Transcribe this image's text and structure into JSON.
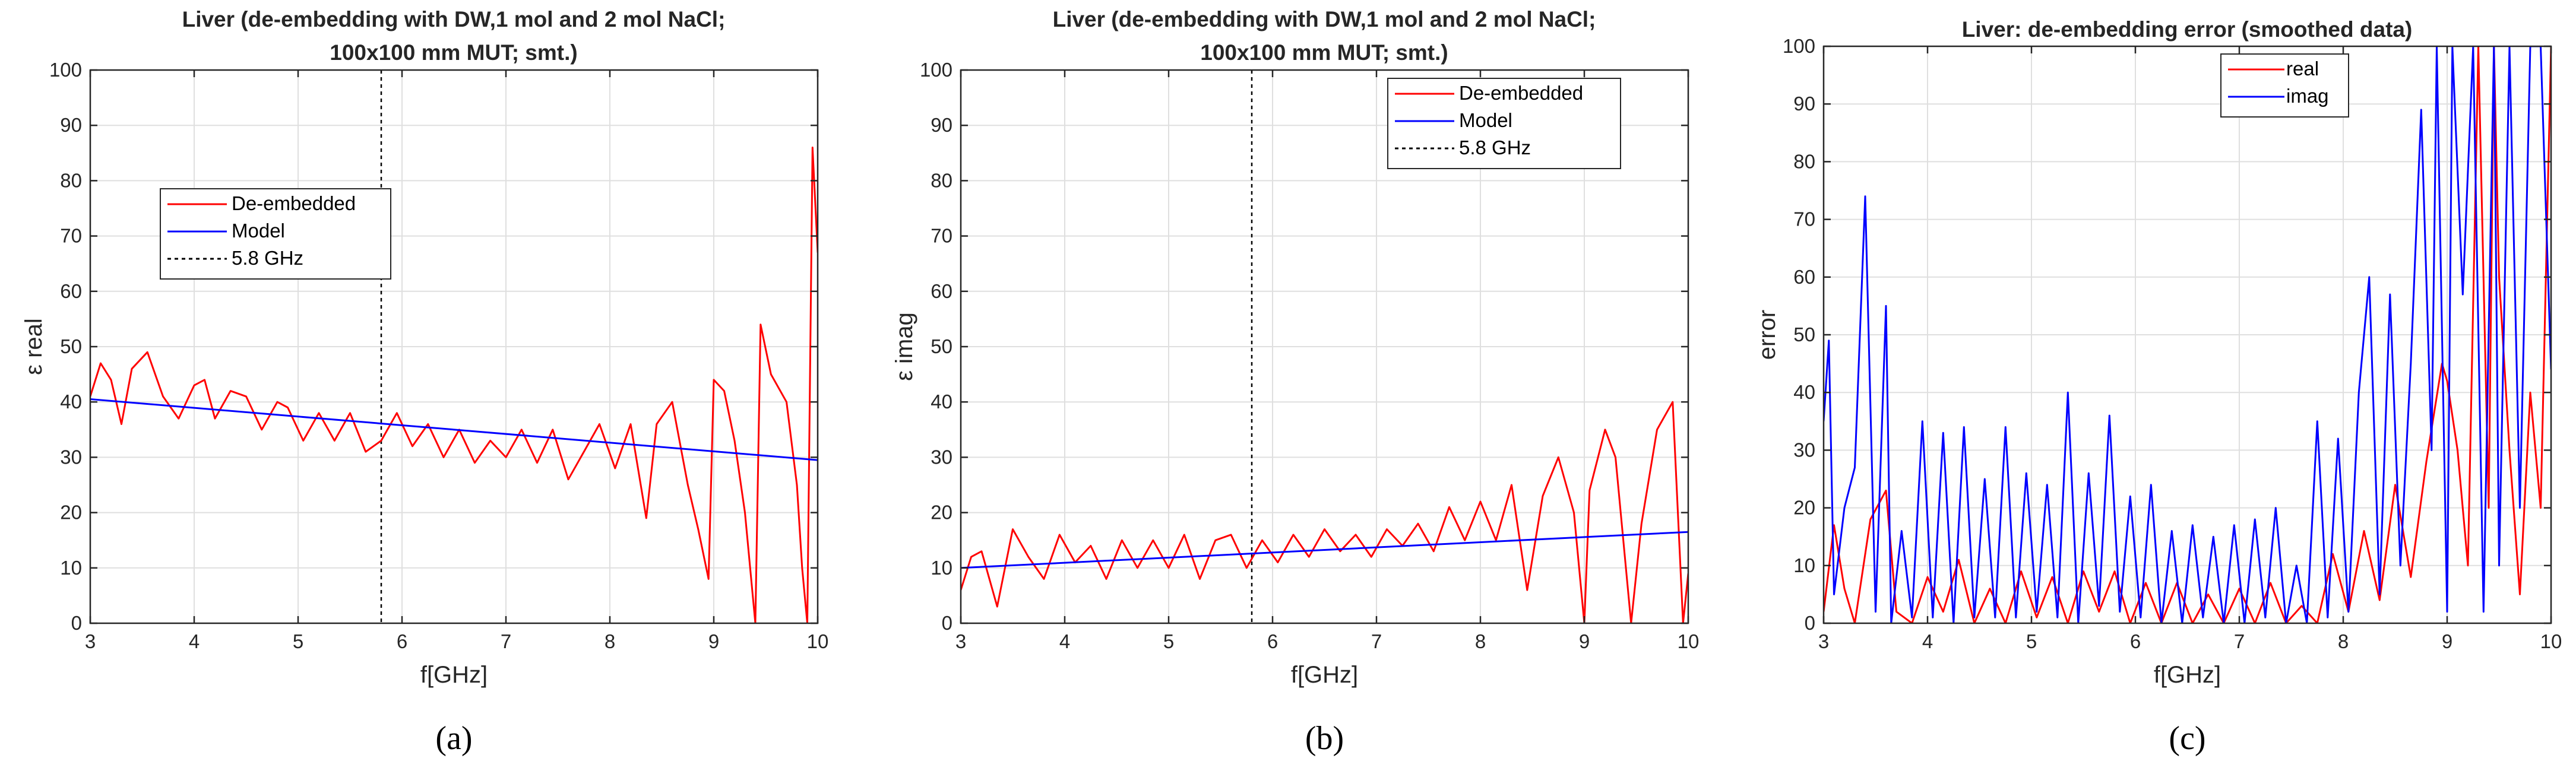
{
  "chart_data": [
    {
      "id": "a",
      "type": "line",
      "title": "Liver (de-embedding with DW,1 mol and 2 mol NaCl;",
      "title2": "100x100 mm MUT; smt.)",
      "xlabel": "f[GHz]",
      "ylabel": "ε real",
      "xlim": [
        3,
        10
      ],
      "ylim": [
        0,
        100
      ],
      "xticks": [
        "3",
        "4",
        "5",
        "6",
        "7",
        "8",
        "9",
        "10"
      ],
      "yticks": [
        "0",
        "10",
        "20",
        "30",
        "40",
        "50",
        "60",
        "70",
        "80",
        "90",
        "100"
      ],
      "grid": true,
      "legend_position": "center-left",
      "panel_label": "(a)",
      "vline": {
        "x": 5.8,
        "name": "5.8 GHz"
      },
      "series": [
        {
          "name": "De-embedded",
          "color": "#ff0000",
          "x": [
            3.0,
            3.1,
            3.2,
            3.3,
            3.4,
            3.55,
            3.7,
            3.85,
            4.0,
            4.1,
            4.2,
            4.35,
            4.5,
            4.65,
            4.8,
            4.9,
            5.05,
            5.2,
            5.35,
            5.5,
            5.65,
            5.8,
            5.95,
            6.1,
            6.25,
            6.4,
            6.55,
            6.7,
            6.85,
            7.0,
            7.15,
            7.3,
            7.45,
            7.6,
            7.75,
            7.9,
            8.05,
            8.2,
            8.35,
            8.45,
            8.6,
            8.75,
            8.85,
            8.95,
            9.0,
            9.1,
            9.2,
            9.3,
            9.4,
            9.45,
            9.55,
            9.7,
            9.8,
            9.85,
            9.9,
            9.95,
            10.0
          ],
          "values": [
            41,
            47,
            44,
            36,
            46,
            49,
            41,
            37,
            43,
            44,
            37,
            42,
            41,
            35,
            40,
            39,
            33,
            38,
            33,
            38,
            31,
            33,
            38,
            32,
            36,
            30,
            35,
            29,
            33,
            30,
            35,
            29,
            35,
            26,
            31,
            36,
            28,
            36,
            19,
            36,
            40,
            25,
            17,
            8,
            44,
            42,
            33,
            20,
            0,
            54,
            45,
            40,
            25,
            10,
            0,
            86,
            67
          ]
        },
        {
          "name": "Model",
          "color": "#0000ff",
          "x": [
            3,
            10
          ],
          "values": [
            40.5,
            29.5
          ]
        }
      ]
    },
    {
      "id": "b",
      "type": "line",
      "title": "Liver (de-embedding with DW,1 mol and 2 mol NaCl;",
      "title2": "100x100 mm MUT; smt.)",
      "xlabel": "f[GHz]",
      "ylabel": "ε imag",
      "xlim": [
        3,
        10
      ],
      "ylim": [
        0,
        100
      ],
      "xticks": [
        "3",
        "4",
        "5",
        "6",
        "7",
        "8",
        "9",
        "10"
      ],
      "yticks": [
        "0",
        "10",
        "20",
        "30",
        "40",
        "50",
        "60",
        "70",
        "80",
        "90",
        "100"
      ],
      "grid": true,
      "legend_position": "top-right",
      "panel_label": "(b)",
      "vline": {
        "x": 5.8,
        "name": "5.8 GHz"
      },
      "series": [
        {
          "name": "De-embedded",
          "color": "#ff0000",
          "x": [
            3.0,
            3.1,
            3.2,
            3.35,
            3.5,
            3.65,
            3.8,
            3.95,
            4.1,
            4.25,
            4.4,
            4.55,
            4.7,
            4.85,
            5.0,
            5.15,
            5.3,
            5.45,
            5.6,
            5.75,
            5.9,
            6.05,
            6.2,
            6.35,
            6.5,
            6.65,
            6.8,
            6.95,
            7.1,
            7.25,
            7.4,
            7.55,
            7.7,
            7.85,
            8.0,
            8.15,
            8.3,
            8.45,
            8.6,
            8.75,
            8.9,
            9.0,
            9.05,
            9.2,
            9.3,
            9.45,
            9.55,
            9.7,
            9.85,
            9.95,
            10.0
          ],
          "values": [
            6,
            12,
            13,
            3,
            17,
            12,
            8,
            16,
            11,
            14,
            8,
            15,
            10,
            15,
            10,
            16,
            8,
            15,
            16,
            10,
            15,
            11,
            16,
            12,
            17,
            13,
            16,
            12,
            17,
            14,
            18,
            13,
            21,
            15,
            22,
            15,
            25,
            6,
            23,
            30,
            20,
            0,
            24,
            35,
            30,
            0,
            18,
            35,
            40,
            0,
            9
          ]
        },
        {
          "name": "Model",
          "color": "#0000ff",
          "x": [
            3,
            10
          ],
          "values": [
            10,
            16.5
          ]
        }
      ]
    },
    {
      "id": "c",
      "type": "line",
      "title": "Liver: de-embedding error (smoothed data)",
      "title2": "",
      "xlabel": "f[GHz]",
      "ylabel": "error",
      "xlim": [
        3,
        10
      ],
      "ylim": [
        0,
        100
      ],
      "xticks": [
        "3",
        "4",
        "5",
        "6",
        "7",
        "8",
        "9",
        "10"
      ],
      "yticks": [
        "0",
        "10",
        "20",
        "30",
        "40",
        "50",
        "60",
        "70",
        "80",
        "90",
        "100"
      ],
      "grid": true,
      "legend_position": "top-center",
      "panel_label": "(c)",
      "series": [
        {
          "name": "real",
          "color": "#ff0000",
          "x": [
            3.0,
            3.1,
            3.2,
            3.3,
            3.45,
            3.6,
            3.7,
            3.85,
            4.0,
            4.15,
            4.3,
            4.45,
            4.6,
            4.75,
            4.9,
            5.05,
            5.2,
            5.35,
            5.5,
            5.65,
            5.8,
            5.95,
            6.1,
            6.25,
            6.4,
            6.55,
            6.7,
            6.85,
            7.0,
            7.15,
            7.3,
            7.45,
            7.6,
            7.75,
            7.9,
            8.05,
            8.2,
            8.35,
            8.5,
            8.65,
            8.8,
            8.95,
            9.0,
            9.1,
            9.2,
            9.3,
            9.4,
            9.45,
            9.5,
            9.6,
            9.7,
            9.8,
            9.9,
            10.0
          ],
          "values": [
            2,
            17,
            6,
            0,
            18,
            23,
            2,
            0,
            8,
            2,
            11,
            0,
            6,
            0,
            9,
            1,
            8,
            0,
            9,
            2,
            9,
            0,
            7,
            0,
            7,
            0,
            5,
            0,
            6,
            0,
            7,
            0,
            3,
            0,
            12,
            2,
            16,
            4,
            24,
            8,
            28,
            45,
            42,
            30,
            10,
            100,
            20,
            100,
            60,
            30,
            5,
            40,
            20,
            100
          ]
        },
        {
          "name": "imag",
          "color": "#0000ff",
          "x": [
            3.0,
            3.05,
            3.1,
            3.2,
            3.3,
            3.4,
            3.5,
            3.6,
            3.65,
            3.75,
            3.85,
            3.95,
            4.05,
            4.15,
            4.25,
            4.35,
            4.45,
            4.55,
            4.65,
            4.75,
            4.85,
            4.95,
            5.05,
            5.15,
            5.25,
            5.35,
            5.45,
            5.55,
            5.65,
            5.75,
            5.85,
            5.95,
            6.05,
            6.15,
            6.25,
            6.35,
            6.45,
            6.55,
            6.65,
            6.75,
            6.85,
            6.95,
            7.05,
            7.15,
            7.25,
            7.35,
            7.45,
            7.55,
            7.65,
            7.75,
            7.85,
            7.95,
            8.05,
            8.15,
            8.25,
            8.35,
            8.45,
            8.55,
            8.65,
            8.75,
            8.85,
            8.9,
            9.0,
            9.05,
            9.15,
            9.25,
            9.35,
            9.45,
            9.5,
            9.6,
            9.7,
            9.8,
            9.9,
            10.0
          ],
          "values": [
            35,
            49,
            5,
            20,
            27,
            74,
            2,
            55,
            0,
            16,
            1,
            35,
            1,
            33,
            0,
            34,
            1,
            25,
            1,
            34,
            1,
            26,
            2,
            24,
            1,
            40,
            0,
            26,
            3,
            36,
            2,
            22,
            1,
            24,
            0,
            16,
            0,
            17,
            1,
            15,
            0,
            17,
            0,
            18,
            1,
            20,
            0,
            10,
            0,
            35,
            1,
            32,
            2,
            40,
            60,
            5,
            57,
            10,
            45,
            89,
            30,
            100,
            2,
            100,
            57,
            100,
            2,
            100,
            10,
            100,
            20,
            100,
            100,
            44
          ]
        }
      ]
    }
  ]
}
